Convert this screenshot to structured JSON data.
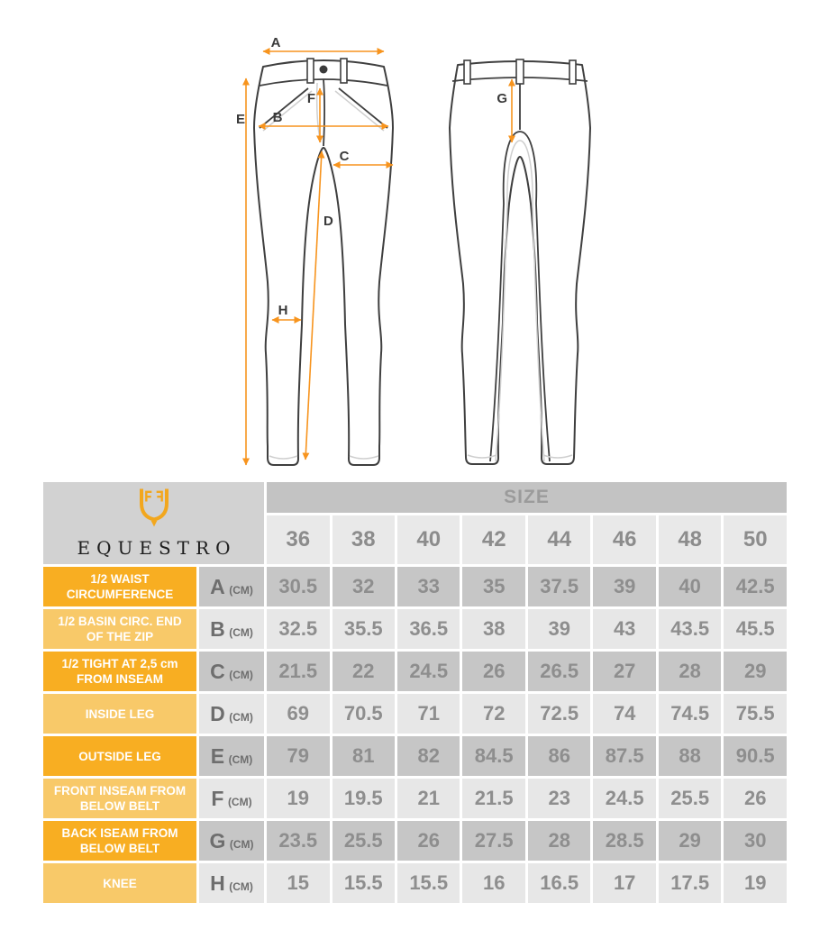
{
  "brand": {
    "name": "EQUESTRO"
  },
  "diagram": {
    "labels": {
      "A": "A",
      "B": "B",
      "C": "C",
      "D": "D",
      "E": "E",
      "F": "F",
      "G": "G",
      "H": "H"
    }
  },
  "table": {
    "size_header": "SIZE",
    "sizes": [
      "36",
      "38",
      "40",
      "42",
      "44",
      "46",
      "48",
      "50"
    ],
    "unit": "(cm)",
    "rows": [
      {
        "label": "1/2 WAIST CIRCUMFERENCE",
        "letter": "A",
        "shade": "dark",
        "values": [
          "30.5",
          "32",
          "33",
          "35",
          "37.5",
          "39",
          "40",
          "42.5"
        ]
      },
      {
        "label": "1/2 BASIN CIRC. END OF THE ZIP",
        "letter": "B",
        "shade": "light",
        "values": [
          "32.5",
          "35.5",
          "36.5",
          "38",
          "39",
          "43",
          "43.5",
          "45.5"
        ]
      },
      {
        "label": "1/2 TIGHT AT 2,5 cm FROM INSEAM",
        "letter": "C",
        "shade": "dark",
        "values": [
          "21.5",
          "22",
          "24.5",
          "26",
          "26.5",
          "27",
          "28",
          "29"
        ]
      },
      {
        "label": "INSIDE LEG",
        "letter": "D",
        "shade": "light",
        "values": [
          "69",
          "70.5",
          "71",
          "72",
          "72.5",
          "74",
          "74.5",
          "75.5"
        ]
      },
      {
        "label": "OUTSIDE LEG",
        "letter": "E",
        "shade": "dark",
        "values": [
          "79",
          "81",
          "82",
          "84.5",
          "86",
          "87.5",
          "88",
          "90.5"
        ]
      },
      {
        "label": "FRONT INSEAM FROM BELOW BELT",
        "letter": "F",
        "shade": "light",
        "values": [
          "19",
          "19.5",
          "21",
          "21.5",
          "23",
          "24.5",
          "25.5",
          "26"
        ]
      },
      {
        "label": "BACK ISEAM FROM BELOW BELT",
        "letter": "G",
        "shade": "dark",
        "values": [
          "23.5",
          "25.5",
          "26",
          "27.5",
          "28",
          "28.5",
          "29",
          "30"
        ]
      },
      {
        "label": "KNEE",
        "letter": "H",
        "shade": "light",
        "values": [
          "15",
          "15.5",
          "15.5",
          "16",
          "16.5",
          "17",
          "17.5",
          "19"
        ]
      }
    ]
  },
  "colors": {
    "orange_dark": "#F8AE22",
    "orange_light": "#F8C969",
    "logo_orange": "#F2A71E",
    "arrow_orange": "#F7941E",
    "cell_dark": "#C6C6C6",
    "cell_light": "#E7E7E7",
    "size_band": "#C3C3C3",
    "size_cell": "#E9E9E9",
    "logo_cell": "#D2D2D2",
    "value_text": "#8E8E8E",
    "letter_text": "#6E6E6E",
    "size_header_text": "#9B9B9B",
    "label_text": "#FFFFFF",
    "line_dark": "#3F3F3F",
    "line_light": "#CFCFCF"
  }
}
